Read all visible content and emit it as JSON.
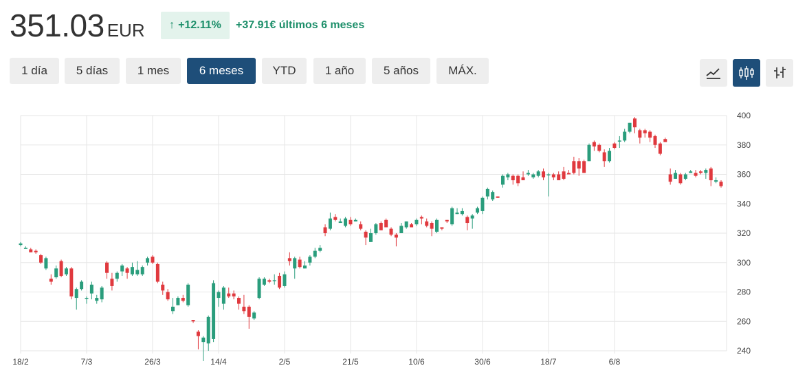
{
  "price": {
    "value": "351.03",
    "currency": "EUR"
  },
  "change": {
    "arrow": "↑",
    "percent": "+12.11%",
    "absolute_text": "+37.91€ últimos 6 meses"
  },
  "range_tabs": [
    {
      "label": "1 día",
      "active": false
    },
    {
      "label": "5 días",
      "active": false
    },
    {
      "label": "1 mes",
      "active": false
    },
    {
      "label": "6 meses",
      "active": true
    },
    {
      "label": "YTD",
      "active": false
    },
    {
      "label": "1 año",
      "active": false
    },
    {
      "label": "5 años",
      "active": false
    },
    {
      "label": "MÁX.",
      "active": false
    }
  ],
  "chart_type_buttons": [
    {
      "icon": "line-chart-icon",
      "active": false
    },
    {
      "icon": "candlestick-icon",
      "active": true
    },
    {
      "icon": "ohlc-bars-icon",
      "active": false
    }
  ],
  "colors": {
    "up": "#2a9d7c",
    "down": "#e0393e",
    "accent": "#1e4e79",
    "badge_bg": "#e3f3ec",
    "badge_text": "#1d8f6a"
  },
  "chart_data": {
    "type": "candlestick",
    "ylim": [
      240,
      400
    ],
    "y_ticks": [
      400,
      380,
      360,
      340,
      320,
      300,
      280,
      260,
      240
    ],
    "y_axis_position": "right",
    "grid": true,
    "x_tick_labels": [
      {
        "label": "18/2",
        "index": 0
      },
      {
        "label": "7/3",
        "index": 13
      },
      {
        "label": "26/3",
        "index": 26
      },
      {
        "label": "14/4",
        "index": 39
      },
      {
        "label": "2/5",
        "index": 52
      },
      {
        "label": "21/5",
        "index": 65
      },
      {
        "label": "10/6",
        "index": 78
      },
      {
        "label": "30/6",
        "index": 91
      },
      {
        "label": "18/7",
        "index": 104
      },
      {
        "label": "6/8",
        "index": 117
      }
    ],
    "candles": [
      [
        312,
        313,
        311,
        314
      ],
      [
        310,
        310,
        310,
        311
      ],
      [
        309,
        307,
        307,
        310
      ],
      [
        308,
        307,
        306,
        309
      ],
      [
        305,
        300,
        299,
        306
      ],
      [
        296,
        303,
        295,
        304
      ],
      [
        289,
        287,
        285,
        292
      ],
      [
        290,
        296,
        289,
        298
      ],
      [
        301,
        291,
        290,
        302
      ],
      [
        292,
        296,
        291,
        297
      ],
      [
        296,
        277,
        275,
        297
      ],
      [
        276,
        282,
        268,
        283
      ],
      [
        282,
        287,
        281,
        288
      ],
      [
        276,
        276,
        272,
        277
      ],
      [
        279,
        285,
        275,
        287
      ],
      [
        274,
        276,
        272,
        278
      ],
      [
        275,
        283,
        273,
        284
      ],
      [
        300,
        293,
        289,
        301
      ],
      [
        289,
        284,
        281,
        293
      ],
      [
        289,
        293,
        287,
        294
      ],
      [
        294,
        298,
        291,
        299
      ],
      [
        296,
        293,
        289,
        297
      ],
      [
        292,
        297,
        291,
        300
      ],
      [
        292,
        295,
        291,
        301
      ],
      [
        292,
        297,
        291,
        298
      ],
      [
        300,
        303,
        298,
        304
      ],
      [
        304,
        300,
        299,
        305
      ],
      [
        299,
        287,
        286,
        300
      ],
      [
        285,
        281,
        278,
        287
      ],
      [
        280,
        275,
        274,
        282
      ],
      [
        267,
        270,
        265,
        276
      ],
      [
        271,
        276,
        271,
        277
      ],
      [
        276,
        274,
        273,
        278
      ],
      [
        271,
        285,
        270,
        286
      ],
      [
        261,
        260,
        259,
        261
      ],
      [
        253,
        250,
        241,
        254
      ],
      [
        246,
        249,
        233,
        250
      ],
      [
        245,
        263,
        240,
        264
      ],
      [
        248,
        286,
        246,
        288
      ],
      [
        276,
        280,
        270,
        281
      ],
      [
        272,
        283,
        268,
        284
      ],
      [
        279,
        277,
        276,
        283
      ],
      [
        279,
        277,
        275,
        281
      ],
      [
        276,
        272,
        268,
        277
      ],
      [
        270,
        267,
        265,
        278
      ],
      [
        270,
        263,
        255,
        271
      ],
      [
        262,
        266,
        261,
        267
      ],
      [
        276,
        289,
        275,
        290
      ],
      [
        285,
        289,
        284,
        290
      ],
      [
        288,
        287,
        286,
        289
      ],
      [
        288,
        288,
        285,
        292
      ],
      [
        291,
        283,
        282,
        293
      ],
      [
        284,
        292,
        283,
        294
      ],
      [
        303,
        301,
        298,
        307
      ],
      [
        296,
        303,
        289,
        304
      ],
      [
        302,
        297,
        296,
        304
      ],
      [
        296,
        298,
        296,
        301
      ],
      [
        300,
        304,
        298,
        305
      ],
      [
        304,
        308,
        303,
        310
      ],
      [
        308,
        310,
        307,
        312
      ],
      [
        324,
        320,
        318,
        326
      ],
      [
        323,
        330,
        322,
        334
      ],
      [
        331,
        329,
        328,
        333
      ],
      [
        327,
        328,
        327,
        330
      ],
      [
        325,
        330,
        324,
        331
      ],
      [
        329,
        326,
        325,
        331
      ],
      [
        328,
        329,
        328,
        330
      ],
      [
        326,
        323,
        322,
        328
      ],
      [
        321,
        317,
        312,
        322
      ],
      [
        314,
        320,
        314,
        323
      ],
      [
        320,
        326,
        319,
        327
      ],
      [
        327,
        322,
        322,
        328
      ],
      [
        329,
        324,
        324,
        330
      ],
      [
        323,
        319,
        318,
        324
      ],
      [
        319,
        317,
        311,
        320
      ],
      [
        320,
        325,
        320,
        327
      ],
      [
        324,
        328,
        323,
        328
      ],
      [
        326,
        324,
        324,
        327
      ],
      [
        326,
        329,
        325,
        330
      ],
      [
        331,
        330,
        326,
        332
      ],
      [
        328,
        325,
        324,
        330
      ],
      [
        327,
        323,
        318,
        328
      ],
      [
        321,
        329,
        320,
        330
      ],
      [
        324,
        323,
        322,
        324
      ],
      [
        329,
        328,
        327,
        329
      ],
      [
        326,
        337,
        325,
        338
      ],
      [
        333,
        334,
        333,
        337
      ],
      [
        333,
        335,
        332,
        337
      ],
      [
        331,
        327,
        322,
        332
      ],
      [
        330,
        332,
        323,
        333
      ],
      [
        334,
        337,
        333,
        338
      ],
      [
        335,
        344,
        333,
        345
      ],
      [
        345,
        350,
        343,
        351
      ],
      [
        343,
        348,
        342,
        349
      ],
      [
        345,
        344,
        344,
        345
      ],
      [
        353,
        359,
        351,
        360
      ],
      [
        358,
        360,
        356,
        361
      ],
      [
        359,
        356,
        353,
        360
      ],
      [
        359,
        354,
        352,
        360
      ],
      [
        358,
        356,
        357,
        362
      ],
      [
        360,
        361,
        359,
        363
      ],
      [
        358,
        360,
        357,
        361
      ],
      [
        359,
        362,
        358,
        363
      ],
      [
        362,
        358,
        356,
        364
      ],
      [
        360,
        360,
        345,
        361
      ],
      [
        360,
        358,
        356,
        361
      ],
      [
        360,
        356,
        357,
        362
      ],
      [
        362,
        357,
        356,
        365
      ],
      [
        361,
        360,
        360,
        363
      ],
      [
        369,
        361,
        360,
        372
      ],
      [
        369,
        364,
        359,
        371
      ],
      [
        369,
        361,
        361,
        370
      ],
      [
        369,
        380,
        369,
        381
      ],
      [
        382,
        379,
        376,
        383
      ],
      [
        380,
        376,
        375,
        381
      ],
      [
        375,
        369,
        365,
        377
      ],
      [
        369,
        376,
        368,
        378
      ],
      [
        381,
        378,
        377,
        382
      ],
      [
        383,
        383,
        378,
        386
      ],
      [
        383,
        389,
        382,
        391
      ],
      [
        389,
        395,
        388,
        395
      ],
      [
        398,
        392,
        388,
        399
      ],
      [
        390,
        385,
        381,
        391
      ],
      [
        390,
        388,
        385,
        391
      ],
      [
        389,
        385,
        382,
        390
      ],
      [
        386,
        380,
        378,
        387
      ],
      [
        381,
        374,
        373,
        382
      ],
      [
        384,
        382,
        382,
        385
      ],
      [
        360,
        355,
        353,
        364
      ],
      [
        357,
        361,
        357,
        363
      ],
      [
        360,
        354,
        353,
        361
      ],
      [
        357,
        360,
        356,
        361
      ],
      [
        361,
        362,
        361,
        363
      ],
      [
        361,
        359,
        358,
        363
      ],
      [
        362,
        361,
        360,
        363
      ],
      [
        361,
        363,
        357,
        364
      ],
      [
        364,
        356,
        352,
        365
      ],
      [
        355,
        356,
        354,
        358
      ],
      [
        355,
        352,
        351,
        356
      ]
    ]
  }
}
